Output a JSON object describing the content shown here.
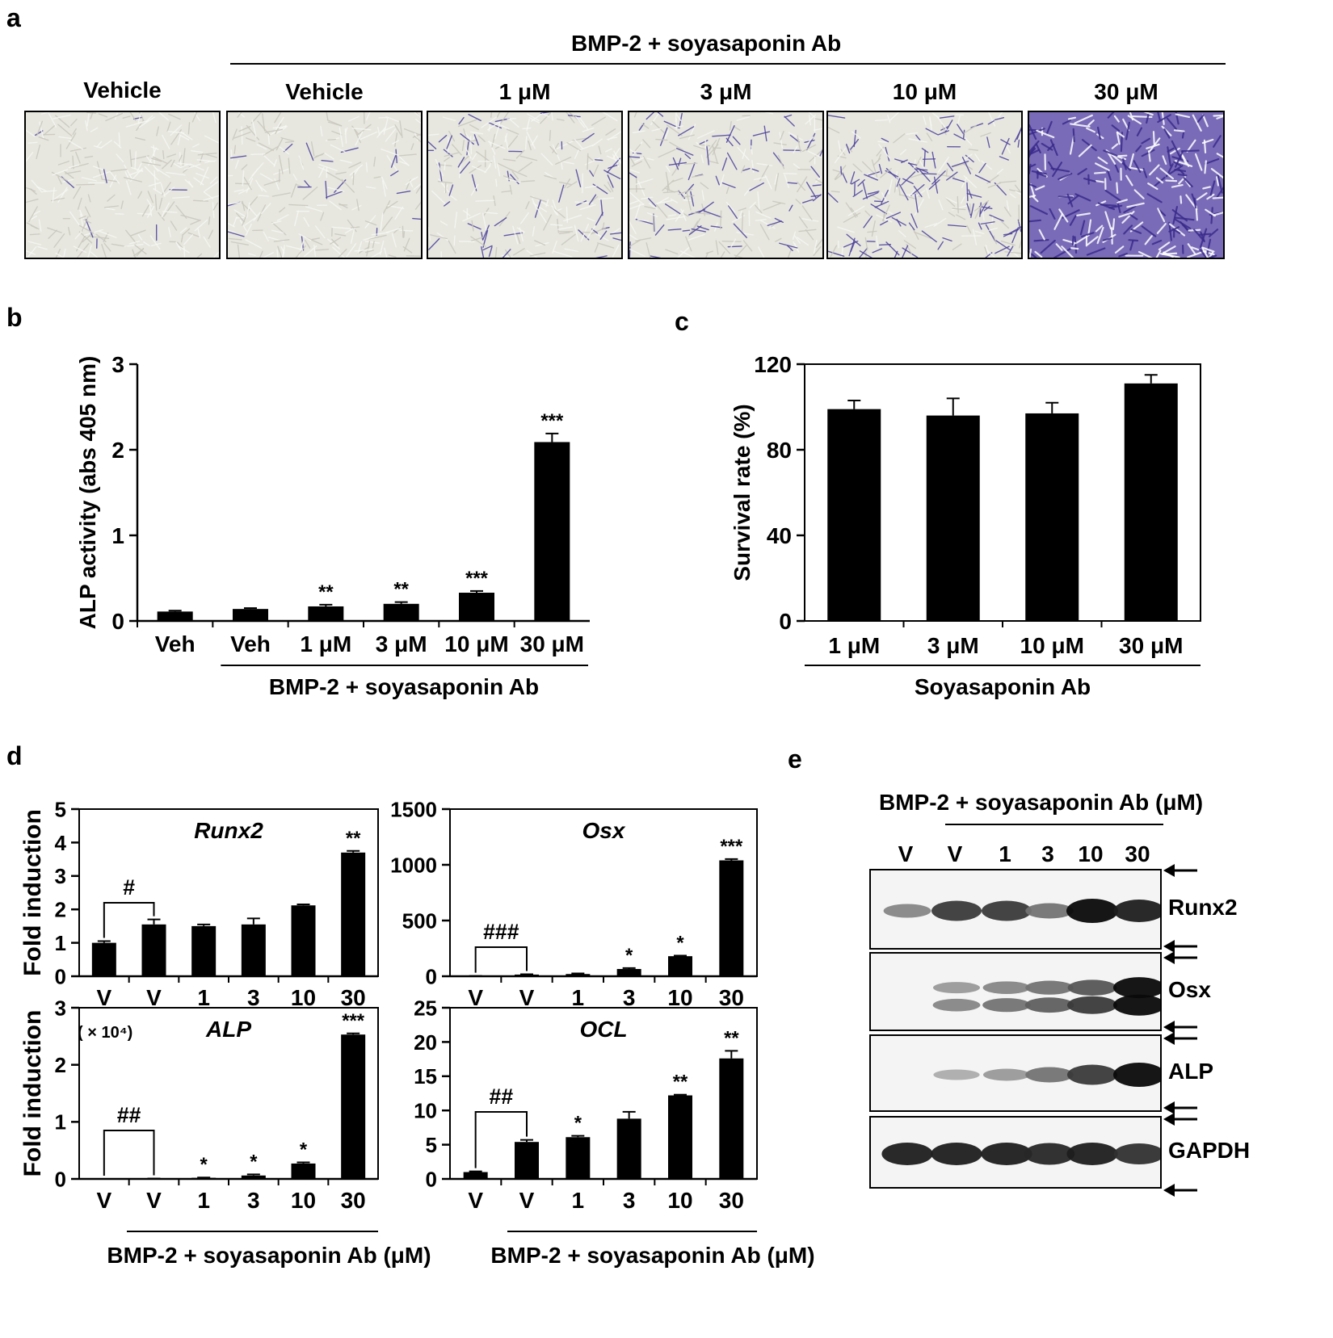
{
  "panel_a": {
    "letter": "a",
    "group_label": "BMP-2 + soyasaponin Ab",
    "images": [
      {
        "label": "Vehicle",
        "stain": 0.02
      },
      {
        "label": "Vehicle",
        "stain": 0.06
      },
      {
        "label": "1 μM",
        "stain": 0.18
      },
      {
        "label": "3 μM",
        "stain": 0.3
      },
      {
        "label": "10 μM",
        "stain": 0.45
      },
      {
        "label": "30 μM",
        "stain": 1.0
      }
    ]
  },
  "panel_b": {
    "letter": "b",
    "group_label": "BMP-2 + soyasaponin Ab",
    "bracket_label": "###"
  },
  "panel_c": {
    "letter": "c",
    "group_label": "Soyasaponin Ab"
  },
  "panel_d": {
    "letter": "d",
    "group_label_left": "BMP-2 + soyasaponin Ab (μM)",
    "group_label_right": "BMP-2 + soyasaponin Ab (μM)",
    "multiplier_note": "( × 10⁴)"
  },
  "panel_e": {
    "letter": "e",
    "header": "BMP-2 + soyasaponin Ab (μM)",
    "lanes": [
      "V",
      "V",
      "1",
      "3",
      "10",
      "30"
    ],
    "blots": [
      {
        "name": "Runx2",
        "bands": [
          [
            0.35,
            0.75,
            0.75,
            0.45,
            1.0,
            0.9
          ]
        ]
      },
      {
        "name": "Osx",
        "bands": [
          [
            0.0,
            0.25,
            0.35,
            0.45,
            0.6,
            1.0
          ],
          [
            0.0,
            0.35,
            0.45,
            0.55,
            0.75,
            1.0
          ]
        ]
      },
      {
        "name": "ALP",
        "bands": [
          [
            0.0,
            0.15,
            0.25,
            0.45,
            0.75,
            1.0
          ]
        ]
      },
      {
        "name": "GAPDH",
        "bands": [
          [
            0.9,
            0.9,
            0.9,
            0.85,
            0.9,
            0.8
          ]
        ]
      }
    ]
  },
  "chart_data": [
    {
      "id": "b",
      "type": "bar",
      "categories": [
        "Veh",
        "Veh",
        "1 μM",
        "3 μM",
        "10 μM",
        "30 μM"
      ],
      "values": [
        0.11,
        0.14,
        0.17,
        0.2,
        0.33,
        2.09
      ],
      "errors": [
        0.01,
        0.01,
        0.02,
        0.02,
        0.02,
        0.1
      ],
      "annotations": [
        "",
        "",
        "**",
        "**",
        "***",
        "***"
      ],
      "ylabel": "ALP activity (abs 405 nm)",
      "ylim": [
        0,
        3
      ],
      "yticks": [
        0,
        1,
        2,
        3
      ],
      "tick_labels": [
        "0",
        "1",
        "2",
        "3"
      ]
    },
    {
      "id": "c",
      "type": "bar",
      "categories": [
        "1 μM",
        "3 μM",
        "10 μM",
        "30 μM"
      ],
      "values": [
        99,
        96,
        97,
        111
      ],
      "errors": [
        4,
        8,
        5,
        4
      ],
      "ylabel": "Survival rate (%)",
      "ylim": [
        0,
        120
      ],
      "yticks": [
        0,
        40,
        80,
        120
      ],
      "tick_labels": [
        "0",
        "40",
        "80",
        "120"
      ]
    },
    {
      "id": "d-runx2",
      "type": "bar",
      "title": "Runx2",
      "categories": [
        "V",
        "V",
        "1",
        "3",
        "10",
        "30"
      ],
      "values": [
        1.0,
        1.55,
        1.5,
        1.55,
        2.12,
        3.7
      ],
      "errors": [
        0.05,
        0.15,
        0.05,
        0.18,
        0.03,
        0.05
      ],
      "annotations": [
        "",
        "",
        "",
        "",
        "",
        "**"
      ],
      "bracket_label": "#",
      "ylabel": "Fold induction",
      "ylim": [
        0,
        5
      ],
      "yticks": [
        0,
        1,
        2,
        3,
        4,
        5
      ],
      "tick_labels": [
        "0",
        "1",
        "2",
        "3",
        "4",
        "5"
      ]
    },
    {
      "id": "d-osx",
      "type": "bar",
      "title": "Osx",
      "categories": [
        "V",
        "V",
        "1",
        "3",
        "10",
        "30"
      ],
      "values": [
        2,
        15,
        20,
        65,
        180,
        1040
      ],
      "errors": [
        1,
        3,
        5,
        8,
        5,
        12
      ],
      "annotations": [
        "",
        "",
        "",
        "*",
        "*",
        "***"
      ],
      "bracket_label": "###",
      "ylim": [
        0,
        1500
      ],
      "yticks": [
        0,
        500,
        1000,
        1500
      ],
      "tick_labels": [
        "0",
        "500",
        "1000",
        "1500"
      ]
    },
    {
      "id": "d-alp",
      "type": "bar",
      "title": "ALP",
      "categories": [
        "V",
        "V",
        "1",
        "3",
        "10",
        "30"
      ],
      "values": [
        0.0,
        0.005,
        0.02,
        0.06,
        0.27,
        2.53
      ],
      "errors": [
        0.0,
        0.002,
        0.005,
        0.02,
        0.02,
        0.02
      ],
      "annotations": [
        "",
        "",
        "*",
        "*",
        "*",
        "***"
      ],
      "bracket_label": "##",
      "ylabel": "Fold induction",
      "ylim": [
        0,
        3
      ],
      "yticks": [
        0,
        1,
        2,
        3
      ],
      "tick_labels": [
        "0",
        "1",
        "2",
        "3"
      ]
    },
    {
      "id": "d-ocl",
      "type": "bar",
      "title": "OCL",
      "categories": [
        "V",
        "V",
        "1",
        "3",
        "10",
        "30"
      ],
      "values": [
        1.0,
        5.4,
        6.1,
        8.8,
        12.2,
        17.6
      ],
      "errors": [
        0.1,
        0.3,
        0.2,
        1.0,
        0.1,
        1.1
      ],
      "annotations": [
        "",
        "",
        "*",
        "",
        "**",
        "**"
      ],
      "bracket_label": "##",
      "ylim": [
        0,
        25
      ],
      "yticks": [
        0,
        5,
        10,
        15,
        20,
        25
      ],
      "tick_labels": [
        "0",
        "5",
        "10",
        "15",
        "20",
        "25"
      ]
    }
  ]
}
